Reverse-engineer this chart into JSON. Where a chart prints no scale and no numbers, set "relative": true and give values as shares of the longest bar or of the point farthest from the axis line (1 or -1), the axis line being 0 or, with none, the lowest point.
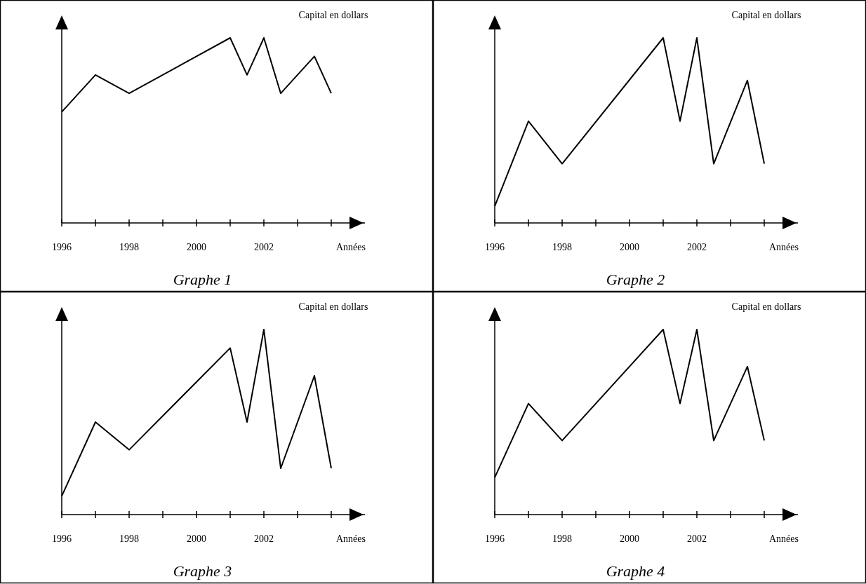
{
  "chart_data": [
    {
      "type": "line",
      "title": "Graphe 1",
      "xlabel": "Années",
      "ylabel": "Capital en dollars",
      "relative": true,
      "x": [
        1996,
        1997,
        1998,
        2001,
        2001.5,
        2002,
        2002.5,
        2003.5,
        2004
      ],
      "xlim": [
        1996,
        2005
      ],
      "xticks": [
        1996,
        {
          "value": 1997,
          "label": null
        },
        1998,
        {
          "value": 1999,
          "label": null
        },
        2000,
        {
          "value": 2001,
          "label": null
        },
        2002,
        {
          "value": 2003,
          "label": null
        },
        {
          "value": 2004,
          "label": null
        }
      ],
      "series": [
        {
          "color": "#000000",
          "values": [
            0.6,
            0.8,
            0.7,
            1,
            0.8,
            1,
            0.7,
            0.9,
            0.7
          ]
        }
      ],
      "grid": false,
      "marker": "none",
      "line_style": "solid"
    },
    {
      "type": "line",
      "title": "Graphe 2",
      "xlabel": "Années",
      "ylabel": "Capital en dollars",
      "relative": true,
      "x": [
        1996,
        1997,
        1998,
        2001,
        2001.5,
        2002,
        2002.5,
        2003.5,
        2004
      ],
      "xlim": [
        1996,
        2005
      ],
      "xticks": [
        1996,
        {
          "value": 1997,
          "label": null
        },
        1998,
        {
          "value": 1999,
          "label": null
        },
        2000,
        {
          "value": 2001,
          "label": null
        },
        2002,
        {
          "value": 2003,
          "label": null
        },
        {
          "value": 2004,
          "label": null
        }
      ],
      "series": [
        {
          "color": "#000000",
          "values": [
            0.09,
            0.55,
            0.32,
            1,
            0.55,
            1,
            0.32,
            0.77,
            0.32
          ]
        }
      ],
      "grid": false,
      "marker": "none",
      "line_style": "solid"
    },
    {
      "type": "line",
      "title": "Graphe 3",
      "xlabel": "Années",
      "ylabel": "Capital en dollars",
      "relative": true,
      "x": [
        1996,
        1997,
        1998,
        2001,
        2001.5,
        2002,
        2002.5,
        2003.5,
        2004
      ],
      "xlim": [
        1996,
        2005
      ],
      "xticks": [
        1996,
        {
          "value": 1997,
          "label": null
        },
        1998,
        {
          "value": 1999,
          "label": null
        },
        2000,
        {
          "value": 2001,
          "label": null
        },
        2002,
        {
          "value": 2003,
          "label": null
        },
        {
          "value": 2004,
          "label": null
        }
      ],
      "series": [
        {
          "color": "#000000",
          "values": [
            0.1,
            0.5,
            0.35,
            0.9,
            0.5,
            1,
            0.25,
            0.75,
            0.25
          ]
        }
      ],
      "grid": false,
      "marker": "none",
      "line_style": "solid"
    },
    {
      "type": "line",
      "title": "Graphe 4",
      "xlabel": "Années",
      "ylabel": "Capital en dollars",
      "relative": true,
      "x": [
        1996,
        1997,
        1998,
        2001,
        2001.5,
        2002,
        2002.5,
        2003.5,
        2004
      ],
      "xlim": [
        1996,
        2005
      ],
      "xticks": [
        1996,
        {
          "value": 1997,
          "label": null
        },
        1998,
        {
          "value": 1999,
          "label": null
        },
        2000,
        {
          "value": 2001,
          "label": null
        },
        2002,
        {
          "value": 2003,
          "label": null
        },
        {
          "value": 2004,
          "label": null
        }
      ],
      "series": [
        {
          "color": "#000000",
          "values": [
            0.2,
            0.6,
            0.4,
            1,
            0.6,
            1,
            0.4,
            0.8,
            0.4
          ]
        }
      ],
      "grid": false,
      "marker": "none",
      "line_style": "solid"
    }
  ]
}
